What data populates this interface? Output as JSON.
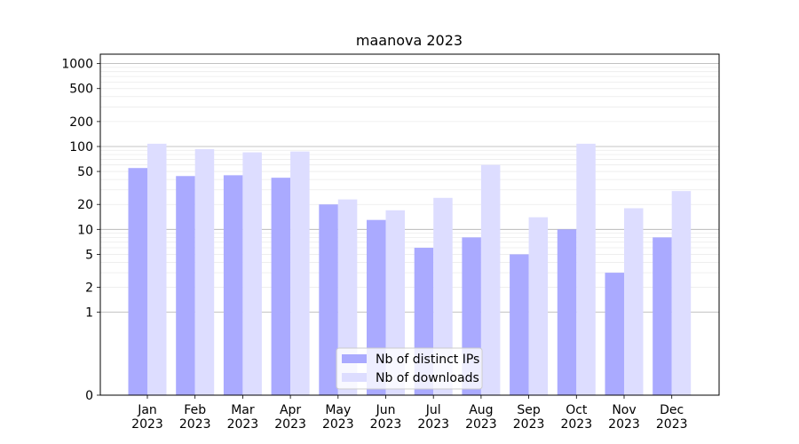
{
  "chart_data": {
    "type": "bar",
    "title": "maanova 2023",
    "xlabel": "",
    "ylabel": "",
    "yscale": "symlog",
    "ylim": [
      0,
      1300
    ],
    "grid": true,
    "legend_placement": "lower-center",
    "categories": [
      [
        "Jan",
        "2023"
      ],
      [
        "Feb",
        "2023"
      ],
      [
        "Mar",
        "2023"
      ],
      [
        "Apr",
        "2023"
      ],
      [
        "May",
        "2023"
      ],
      [
        "Jun",
        "2023"
      ],
      [
        "Jul",
        "2023"
      ],
      [
        "Aug",
        "2023"
      ],
      [
        "Sep",
        "2023"
      ],
      [
        "Oct",
        "2023"
      ],
      [
        "Nov",
        "2023"
      ],
      [
        "Dec",
        "2023"
      ]
    ],
    "y_ticks": [
      0,
      1,
      2,
      5,
      10,
      20,
      50,
      100,
      200,
      500,
      1000
    ],
    "y_tick_labels": [
      "0",
      "1",
      "2",
      "5",
      "10",
      "20",
      "50",
      "100",
      "200",
      "500",
      "1000"
    ],
    "series": [
      {
        "name": "Nb of distinct IPs",
        "color": "#aaaaff",
        "values": [
          55,
          44,
          45,
          42,
          20,
          13,
          6,
          8,
          5,
          10,
          3,
          8
        ]
      },
      {
        "name": "Nb of downloads",
        "color": "#ddddff",
        "values": [
          108,
          93,
          85,
          87,
          23,
          17,
          24,
          60,
          14,
          108,
          18,
          29
        ]
      }
    ]
  }
}
